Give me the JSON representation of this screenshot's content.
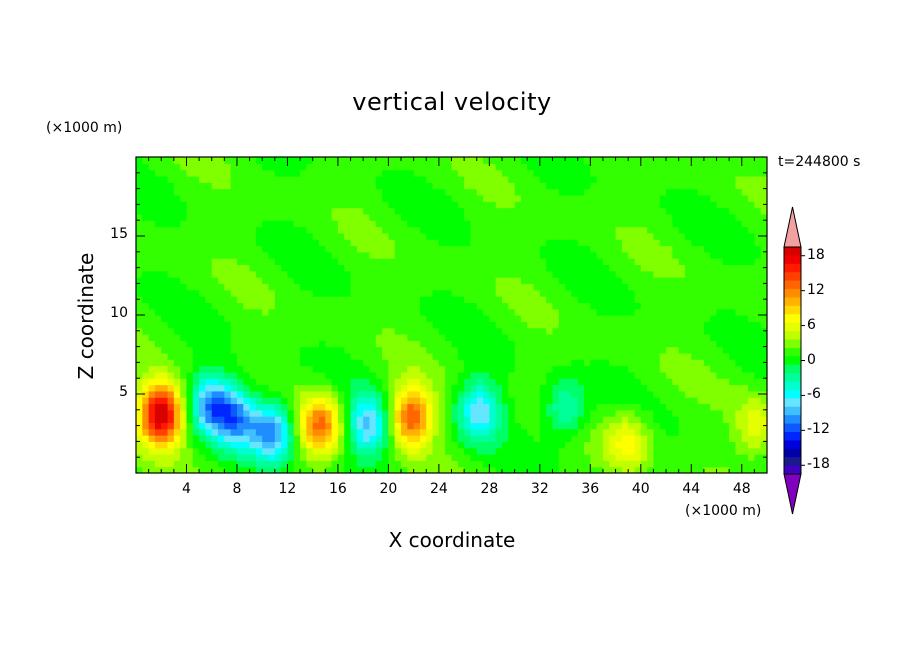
{
  "chart_data": {
    "type": "heatmap",
    "title": "vertical velocity",
    "xlabel": "X coordinate",
    "ylabel": "Z coordinate",
    "x_unit": "(×1000 m)",
    "y_unit": "(×1000 m)",
    "time_label": "t=244800 s",
    "xlim": [
      0,
      50
    ],
    "ylim": [
      0,
      20
    ],
    "x_ticks": [
      4,
      8,
      12,
      16,
      20,
      24,
      28,
      32,
      36,
      40,
      44,
      48
    ],
    "y_ticks": [
      5,
      10,
      15
    ],
    "colorbar": {
      "levels": [
        -21,
        -19.5,
        -18,
        -16.5,
        -15,
        -13.5,
        -12,
        -10.5,
        -9,
        -7.5,
        -6,
        -4.5,
        -3,
        -1.5,
        0,
        1.5,
        3,
        4.5,
        6,
        7.5,
        9,
        10.5,
        12,
        13.5,
        15,
        16.5,
        18,
        19.5
      ],
      "tick_labels": [
        "18",
        "12",
        "6",
        "0",
        "-6",
        "-12",
        "-18"
      ],
      "colors": [
        "#7f00bf",
        "#3f00bf",
        "#1a1a8c",
        "#0000aa",
        "#0000dd",
        "#0026ff",
        "#0d59ff",
        "#1f8cff",
        "#40bfff",
        "#66e5ff",
        "#00ffff",
        "#00ffcc",
        "#00ff99",
        "#00ff66",
        "#00ff00",
        "#33ff00",
        "#80ff00",
        "#bfff00",
        "#e6ff00",
        "#ffff00",
        "#ffd900",
        "#ffb300",
        "#ff8c00",
        "#ff6600",
        "#ff4000",
        "#ff1a00",
        "#f00000",
        "#d90000",
        "#f2a0a0"
      ]
    },
    "features": [
      {
        "x": 2.0,
        "z": 3.8,
        "w": 19
      },
      {
        "x": 6.0,
        "z": 4.4,
        "w": -11
      },
      {
        "x": 8.0,
        "z": 3.5,
        "w": -10
      },
      {
        "x": 10.8,
        "z": 2.6,
        "w": -12
      },
      {
        "x": 14.6,
        "z": 3.1,
        "w": 11
      },
      {
        "x": 18.4,
        "z": 3.0,
        "w": -10
      },
      {
        "x": 21.8,
        "z": 3.6,
        "w": 13
      },
      {
        "x": 27.2,
        "z": 4.0,
        "w": -9
      },
      {
        "x": 34.0,
        "z": 4.0,
        "w": -6
      },
      {
        "x": 39.0,
        "z": 2.0,
        "w": 6
      },
      {
        "x": 49.2,
        "z": 3.0,
        "w": 5
      }
    ]
  }
}
